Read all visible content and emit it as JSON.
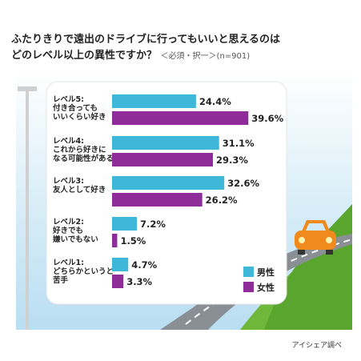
{
  "title": {
    "line1": "ふたりきりで遠出のドライブに行ってもいいと思えるのは",
    "line2": "どのレベル以上の異性ですか？",
    "note": "＜必須・択一＞",
    "n": "(n=901)"
  },
  "credit": "アイシェア調べ",
  "chart_data": {
    "type": "bar",
    "orientation": "horizontal",
    "categories": [
      [
        "レベル5:",
        "付き合っても",
        "いいくらい好き"
      ],
      [
        "レベル4:",
        "これから好きに",
        "なる可能性がある"
      ],
      [
        "レベル3:",
        "友人として好き"
      ],
      [
        "レベル2:",
        "好きでも",
        "嫌いでもない"
      ],
      [
        "レベル1:",
        "どちらかというと",
        "苦手"
      ]
    ],
    "series": [
      {
        "name": "男性",
        "color": "#3fb7d9",
        "values": [
          24.4,
          31.1,
          32.6,
          7.2,
          4.7
        ]
      },
      {
        "name": "女性",
        "color": "#8e2d9a",
        "values": [
          39.6,
          29.3,
          26.2,
          1.5,
          3.3
        ]
      }
    ],
    "value_suffix": "%",
    "legend_position": "bottom-right"
  }
}
